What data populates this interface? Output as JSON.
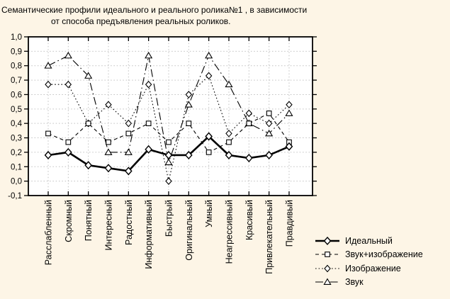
{
  "figure": {
    "background_color": "#FDF5E6",
    "plot_background_color": "#FFFFFF",
    "grid_color": "#C0C0C0",
    "axis_color": "#000000",
    "series_color": "#000000"
  },
  "chart_data": {
    "type": "line",
    "title_lines": [
      "Семантические профили идеального и реального ролика№1 , в зависимости",
      "от способа предъявления реальных роликов."
    ],
    "categories": [
      "Расслабленный",
      "Скромный",
      "Понятный",
      "Интересный",
      "Радостный",
      "Информативный",
      "Быстрый",
      "Оригинальный",
      "Умный",
      "Неагрессивный",
      "Красивый",
      "Привлекательный",
      "Правдивый"
    ],
    "xlabel": "",
    "ylabel": "",
    "ylim": [
      -0.1,
      1.0
    ],
    "ytick_step": 0.1,
    "ytick_labels": [
      "1,0",
      "0,9",
      "0,8",
      "0,7",
      "0,6",
      "0,5",
      "0,4",
      "0,3",
      "0,2",
      "0,1",
      "0,0",
      "-0,1"
    ],
    "grid": "dotted horizontal and vertical",
    "legend_position": "bottom-right",
    "series": [
      {
        "name": "Идеальный",
        "marker": "diamond",
        "line_style": "solid-thick",
        "values": [
          0.18,
          0.2,
          0.11,
          0.09,
          0.07,
          0.22,
          0.18,
          0.18,
          0.31,
          0.18,
          0.16,
          0.18,
          0.24
        ]
      },
      {
        "name": "Звук+изображение",
        "marker": "square",
        "line_style": "dash",
        "values": [
          0.33,
          0.27,
          0.4,
          0.27,
          0.33,
          0.4,
          0.27,
          0.4,
          0.2,
          0.27,
          0.4,
          0.47,
          0.27
        ]
      },
      {
        "name": "Изображение",
        "marker": "diamond",
        "line_style": "dot",
        "values": [
          0.67,
          0.67,
          0.4,
          0.53,
          0.4,
          0.67,
          0.0,
          0.6,
          0.73,
          0.33,
          0.47,
          0.4,
          0.53
        ]
      },
      {
        "name": "Звук",
        "marker": "triangle",
        "line_style": "long-dash-dot",
        "values": [
          0.8,
          0.87,
          0.73,
          0.2,
          0.2,
          0.87,
          0.13,
          0.53,
          0.87,
          0.67,
          0.4,
          0.33,
          0.47
        ]
      }
    ]
  }
}
